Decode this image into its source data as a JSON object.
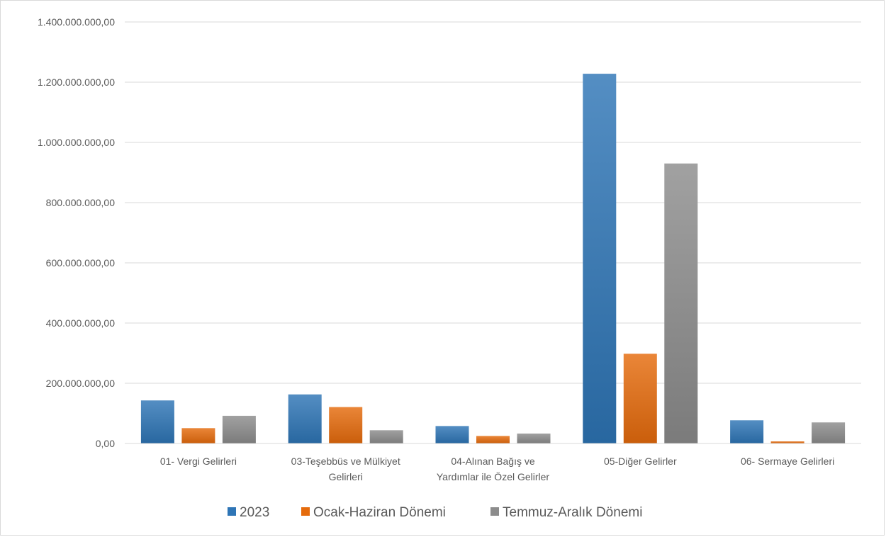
{
  "chart_data": {
    "type": "bar",
    "categories": [
      [
        "01- Vergi Gelirleri"
      ],
      [
        "03-Teşebbüs ve Mülkiyet",
        "Gelirleri"
      ],
      [
        "04-Alınan Bağış ve",
        "Yardımlar ile Özel Gelirler"
      ],
      [
        "05-Diğer Gelirler"
      ],
      [
        "06- Sermaye Gelirleri"
      ]
    ],
    "series": [
      {
        "name": "2023",
        "color": "#2e75b6",
        "values": [
          143000000,
          163000000,
          58000000,
          1228000000,
          77000000
        ]
      },
      {
        "name": "Ocak-Haziran Dönemi",
        "color": "#e56b0c",
        "values": [
          51000000,
          121000000,
          25000000,
          298000000,
          7000000
        ]
      },
      {
        "name": "Temmuz-Aralık Dönemi",
        "color": "#8c8c8c",
        "values": [
          92000000,
          44000000,
          33000000,
          930000000,
          70000000
        ]
      }
    ],
    "yticks": [
      "0,00",
      "200.000.000,00",
      "400.000.000,00",
      "600.000.000,00",
      "800.000.000,00",
      "1.000.000.000,00",
      "1.200.000.000,00",
      "1.400.000.000,00"
    ],
    "ylim": [
      0,
      1400000000
    ],
    "grid": true,
    "legend": "bottom"
  }
}
